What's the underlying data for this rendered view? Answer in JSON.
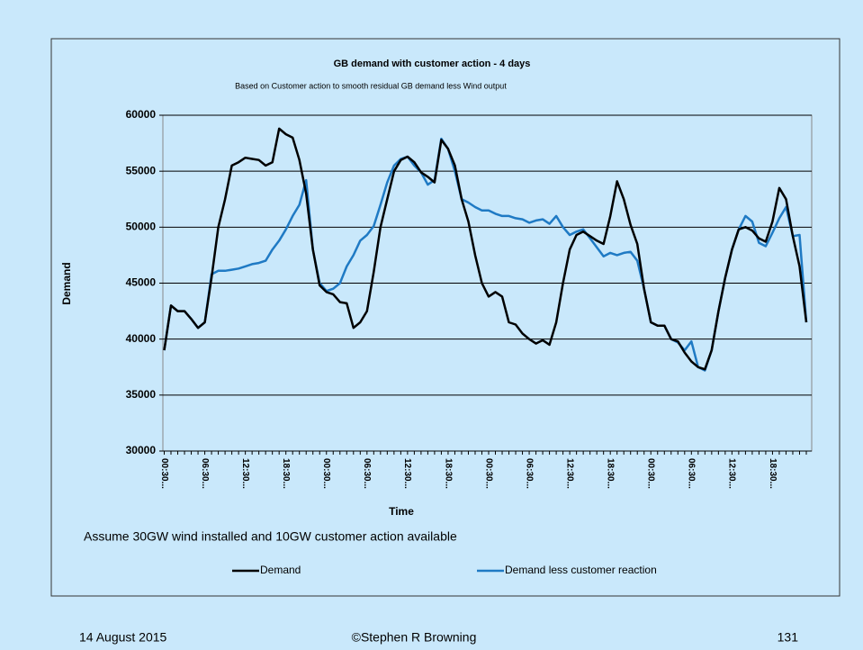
{
  "chart_data": {
    "type": "line",
    "title": "GB demand with customer action - 4 days",
    "subtitle": "Based on Customer action to smooth residual GB demand less Wind output",
    "ylabel": "Demand",
    "xlabel": "Time",
    "note": "Assume 30GW wind installed and 10GW customer action available",
    "categories": [
      "00:30...",
      null,
      null,
      null,
      null,
      null,
      "06:30...",
      null,
      null,
      null,
      null,
      null,
      "12:30...",
      null,
      null,
      null,
      null,
      null,
      "18:30...",
      null,
      null,
      null,
      null,
      null,
      "00:30...",
      null,
      null,
      null,
      null,
      null,
      "06:30...",
      null,
      null,
      null,
      null,
      null,
      "12:30...",
      null,
      null,
      null,
      null,
      null,
      "18:30...",
      null,
      null,
      null,
      null,
      null,
      "00:30...",
      null,
      null,
      null,
      null,
      null,
      "06:30...",
      null,
      null,
      null,
      null,
      null,
      "12:30...",
      null,
      null,
      null,
      null,
      null,
      "18:30...",
      null,
      null,
      null,
      null,
      null,
      "00:30...",
      null,
      null,
      null,
      null,
      null,
      "06:30...",
      null,
      null,
      null,
      null,
      null,
      "12:30...",
      null,
      null,
      null,
      null,
      null,
      "18:30...",
      null,
      null,
      null,
      null,
      null
    ],
    "series": [
      {
        "name": "Demand",
        "color": "#000000",
        "values": [
          39000,
          43000,
          42500,
          42500,
          41800,
          41000,
          41500,
          45500,
          50000,
          52500,
          55500,
          55800,
          56200,
          56100,
          56000,
          55500,
          55800,
          58800,
          58300,
          58000,
          56000,
          53000,
          48000,
          44800,
          44200,
          44000,
          43300,
          43200,
          41000,
          41500,
          42500,
          46000,
          50000,
          52500,
          55000,
          56000,
          56300,
          55800,
          54900,
          54500,
          54000,
          57800,
          57000,
          55500,
          52500,
          50500,
          47500,
          45000,
          43800,
          44200,
          43800,
          41500,
          41300,
          40500,
          40000,
          39600,
          39900,
          39500,
          41500,
          45000,
          48000,
          49300,
          49600,
          49200,
          48800,
          48500,
          51000,
          54100,
          52500,
          50200,
          48500,
          44500,
          41500,
          41200,
          41200,
          40000,
          39800,
          38800,
          38000,
          37500,
          37300,
          39000,
          42500,
          45500,
          48000,
          49800,
          50000,
          49700,
          49000,
          48700,
          50500,
          53500,
          52500,
          49200,
          46500,
          41500
        ]
      },
      {
        "name": "Demand less customer reaction",
        "color": "#1f7ac4",
        "values": [
          39000,
          43000,
          42500,
          42500,
          41800,
          41000,
          41500,
          45800,
          46100,
          46100,
          46200,
          46300,
          46500,
          46700,
          46800,
          47000,
          48000,
          48800,
          49800,
          51000,
          52000,
          54200,
          48000,
          45000,
          44300,
          44500,
          45000,
          46500,
          47500,
          48800,
          49300,
          50100,
          52000,
          54000,
          55500,
          56100,
          56300,
          55500,
          54900,
          53800,
          54200,
          57900,
          57000,
          55000,
          52500,
          52200,
          51800,
          51500,
          51500,
          51200,
          51000,
          51000,
          50800,
          50700,
          50400,
          50600,
          50700,
          50300,
          51000,
          50000,
          49300,
          49600,
          49800,
          49000,
          48200,
          47400,
          47700,
          47500,
          47700,
          47800,
          47000,
          44500,
          41500,
          41200,
          41200,
          40000,
          39700,
          39000,
          39800,
          37500,
          37200,
          39000,
          42500,
          45500,
          48000,
          49800,
          51000,
          50500,
          48600,
          48300,
          49500,
          50800,
          51800,
          49200,
          49300,
          41500
        ]
      }
    ],
    "ylim": [
      30000,
      60000
    ],
    "yticks": [
      30000,
      35000,
      40000,
      45000,
      50000,
      55000,
      60000
    ],
    "grid": true,
    "legend": "bottom"
  },
  "footer": {
    "date": "14 August 2015",
    "author": "©Stephen R Browning",
    "page": "131"
  }
}
